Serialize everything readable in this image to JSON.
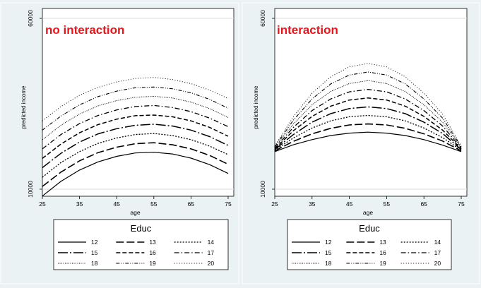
{
  "chart_data": [
    {
      "type": "line",
      "annotation": "no interaction",
      "ylabel": "predicted income",
      "xlabel": "age",
      "x": [
        25,
        30,
        35,
        40,
        45,
        50,
        55,
        60,
        65,
        70,
        75
      ],
      "xticks": [
        "25",
        "35",
        "45",
        "55",
        "65",
        "75"
      ],
      "yticks": [
        "10000",
        "60000"
      ],
      "xlim": [
        25,
        75
      ],
      "ylim": [
        10000,
        60000
      ],
      "grid": "horizontal",
      "legend_position": "bottom",
      "legend_title": "Educ",
      "series": [
        {
          "name": "12",
          "values": [
            8000,
            12300,
            15600,
            18000,
            19600,
            20600,
            20800,
            20300,
            19100,
            17200,
            14600
          ]
        },
        {
          "name": "13",
          "values": [
            10800,
            15000,
            18300,
            20700,
            22300,
            23300,
            23600,
            23000,
            21800,
            19900,
            17300
          ]
        },
        {
          "name": "14",
          "values": [
            13500,
            17800,
            21000,
            23400,
            25000,
            26000,
            26300,
            25700,
            24500,
            22600,
            20100
          ]
        },
        {
          "name": "15",
          "values": [
            16300,
            20500,
            23800,
            26200,
            27700,
            28700,
            29000,
            28500,
            27300,
            25400,
            22800
          ]
        },
        {
          "name": "16",
          "values": [
            19000,
            23200,
            26500,
            28900,
            30500,
            31500,
            31700,
            31200,
            30000,
            28100,
            25500
          ]
        },
        {
          "name": "17",
          "values": [
            21800,
            26000,
            29200,
            31600,
            33200,
            34200,
            34500,
            33900,
            32700,
            30800,
            28300
          ]
        },
        {
          "name": "18",
          "values": [
            24500,
            28700,
            32000,
            34400,
            35900,
            36900,
            37200,
            36700,
            35500,
            33600,
            31000
          ]
        },
        {
          "name": "19",
          "values": [
            27300,
            31400,
            34700,
            37100,
            38700,
            39700,
            39900,
            39400,
            38200,
            36300,
            33700
          ]
        },
        {
          "name": "20",
          "values": [
            30000,
            34200,
            37500,
            39800,
            41400,
            42400,
            42700,
            42100,
            40900,
            39000,
            36500
          ]
        }
      ]
    },
    {
      "type": "line",
      "annotation": "interaction",
      "ylabel": "predicted income",
      "xlabel": "age",
      "x": [
        25,
        30,
        35,
        40,
        45,
        50,
        55,
        60,
        65,
        70,
        75
      ],
      "xticks": [
        "25",
        "35",
        "45",
        "55",
        "65",
        "75"
      ],
      "yticks": [
        "10000",
        "60000"
      ],
      "xlim": [
        25,
        75
      ],
      "ylim": [
        10000,
        60000
      ],
      "grid": "horizontal",
      "legend_position": "bottom",
      "legend_title": "Educ",
      "series": [
        {
          "name": "12",
          "values": [
            21000,
            23000,
            24500,
            25700,
            26400,
            26700,
            26400,
            25700,
            24500,
            22900,
            21000
          ]
        },
        {
          "name": "13",
          "values": [
            21200,
            24000,
            26200,
            27800,
            28800,
            29100,
            28800,
            27800,
            26200,
            24100,
            21200
          ]
        },
        {
          "name": "14",
          "values": [
            21400,
            25000,
            27900,
            30000,
            31200,
            31600,
            31200,
            30000,
            27900,
            25100,
            21400
          ]
        },
        {
          "name": "15",
          "values": [
            21600,
            26000,
            29600,
            32100,
            33600,
            34100,
            33600,
            32100,
            29600,
            26300,
            21600
          ]
        },
        {
          "name": "16",
          "values": [
            21800,
            27100,
            31300,
            34300,
            36100,
            36700,
            36100,
            34300,
            31300,
            27300,
            21800
          ]
        },
        {
          "name": "17",
          "values": [
            22000,
            28100,
            33000,
            36400,
            38500,
            39200,
            38500,
            36400,
            33000,
            28500,
            22000
          ]
        },
        {
          "name": "18",
          "values": [
            22200,
            29100,
            34700,
            38600,
            40900,
            41800,
            40900,
            38600,
            34700,
            29600,
            22200
          ]
        },
        {
          "name": "19",
          "values": [
            22400,
            30200,
            36400,
            40800,
            43400,
            44300,
            43400,
            40800,
            36400,
            30800,
            22400
          ]
        },
        {
          "name": "20",
          "values": [
            22600,
            31200,
            38100,
            42900,
            45800,
            46800,
            45800,
            42900,
            38100,
            32000,
            22600
          ]
        }
      ]
    }
  ],
  "styles": {
    "12": "solid",
    "13": "long-dash",
    "14": "dotted",
    "15": "long-dash-dot",
    "16": "dash",
    "17": "dash-dot",
    "18": "fine-dot",
    "19": "dash-dot-dot",
    "20": "sparse-dot"
  },
  "colors": {
    "background": "#eaf2f3",
    "plot": "#ffffff",
    "annotation": "#e8151b",
    "lines": "#000000",
    "grid": "#d8d8d8"
  }
}
